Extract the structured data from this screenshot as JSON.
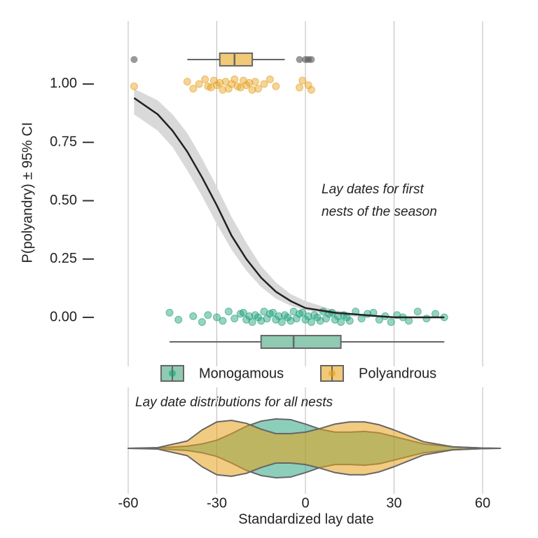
{
  "chart_data": [
    {
      "type": "logistic",
      "y_label": "P(polyandry) ± 95% CI",
      "annotation": [
        "Lay dates for first",
        "nests of the season"
      ],
      "xlim": [
        -60,
        66
      ],
      "xticks": [
        -60,
        -30,
        0,
        30,
        60
      ],
      "ylim": [
        -0.21,
        1.27
      ],
      "yticks": [
        {
          "value": 0,
          "label": "0.00"
        },
        {
          "value": 0.25,
          "label": "0.25"
        },
        {
          "value": 0.5,
          "label": "0.50"
        },
        {
          "value": 0.75,
          "label": "0.75"
        },
        {
          "value": 1,
          "label": "1.00"
        }
      ],
      "grid": true,
      "fit": {
        "color": "#222222",
        "band_color": "#d9d9d9",
        "x": [
          -58,
          -50,
          -45,
          -40,
          -35,
          -30,
          -25,
          -20,
          -15,
          -10,
          -5,
          0,
          10,
          20,
          30,
          47
        ],
        "y": [
          0.94,
          0.87,
          0.8,
          0.71,
          0.6,
          0.48,
          0.35,
          0.25,
          0.17,
          0.11,
          0.07,
          0.04,
          0.02,
          0.01,
          0,
          0
        ],
        "lower": [
          0.87,
          0.8,
          0.73,
          0.63,
          0.52,
          0.4,
          0.29,
          0.2,
          0.13,
          0.08,
          0.05,
          0.03,
          0.01,
          0,
          0,
          0
        ],
        "upper": [
          0.98,
          0.93,
          0.87,
          0.79,
          0.68,
          0.56,
          0.43,
          0.32,
          0.22,
          0.15,
          0.1,
          0.07,
          0.03,
          0.01,
          0.005,
          0.002
        ]
      },
      "legend": "bottom",
      "series": [
        {
          "name": "Monogamous",
          "color": "#1b9e77",
          "box_color": "#8fcab2",
          "x": [
            -46,
            -43,
            -38,
            -35,
            -33,
            -30,
            -28,
            -26,
            -24,
            -22,
            -21,
            -20,
            -19,
            -18,
            -17,
            -16,
            -15,
            -14,
            -13,
            -12,
            -11,
            -10,
            -9,
            -8,
            -7,
            -6,
            -5,
            -4,
            -3,
            -2,
            -1,
            0,
            1,
            2,
            3,
            4,
            5,
            6,
            7,
            8,
            9,
            10,
            11,
            12,
            13,
            14,
            15,
            17,
            19,
            21,
            23,
            25,
            27,
            29,
            31,
            33,
            35,
            38,
            41,
            44,
            47
          ],
          "y": [
            0.02,
            -0.01,
            0.005,
            -0.02,
            0.01,
            0,
            -0.015,
            0.025,
            -0.005,
            0.015,
            0.02,
            -0.01,
            0.005,
            -0.02,
            0.01,
            0,
            -0.015,
            0.025,
            -0.005,
            0.015,
            0.02,
            -0.01,
            0.005,
            -0.02,
            0.01,
            0,
            -0.015,
            0.025,
            -0.005,
            0.015,
            0.02,
            -0.01,
            0.005,
            -0.02,
            0.01,
            0,
            -0.015,
            0.025,
            -0.005,
            0.015,
            0.02,
            -0.01,
            0.005,
            -0.02,
            0.01,
            0,
            -0.015,
            0.025,
            -0.005,
            0.015,
            0.02,
            -0.01,
            0.005,
            -0.02,
            0.01,
            0,
            -0.015,
            0.025,
            -0.005,
            0.015,
            0
          ],
          "box": {
            "whisker_low": -46,
            "q1": -15,
            "median": -4,
            "q3": 12,
            "whisker_high": 47,
            "outliers": []
          }
        },
        {
          "name": "Polyandrous",
          "color": "#e6a01a",
          "box_color": "#f1c977",
          "x": [
            -58,
            -40,
            -38,
            -36,
            -34,
            -33,
            -32,
            -31,
            -30,
            -29,
            -28,
            -27,
            -26,
            -25,
            -24,
            -23,
            -22,
            -21,
            -20,
            -19,
            -18,
            -17,
            -16,
            -14,
            -12,
            -10,
            -2,
            -1,
            1,
            2
          ],
          "y": [
            0.99,
            1.01,
            0.98,
            1,
            1.02,
            0.99,
            0.985,
            1.015,
            0.995,
            1.005,
            0.975,
            1.01,
            0.98,
            1,
            1.02,
            0.99,
            0.985,
            1.015,
            0.995,
            1.005,
            0.975,
            1.01,
            0.98,
            1,
            1.02,
            0.99,
            0.985,
            1.015,
            0.995,
            0.975
          ],
          "box": {
            "whisker_low": -40,
            "q1": -29,
            "median": -24,
            "q3": -18,
            "whisker_high": -7,
            "outliers": [
              -58,
              -2,
              0,
              1,
              2
            ]
          }
        }
      ]
    },
    {
      "type": "violin",
      "annotation": "Lay date distributions for all nests",
      "x_label": "Standardized lay date",
      "xlim": [
        -60,
        66
      ],
      "xticks": [
        -60,
        -30,
        0,
        30,
        60
      ],
      "grid": true,
      "x": [
        -60,
        -50,
        -40,
        -35,
        -30,
        -25,
        -20,
        -15,
        -10,
        -5,
        0,
        5,
        10,
        15,
        20,
        25,
        30,
        40,
        50,
        60,
        66
      ],
      "series": [
        {
          "name": "Monogamous",
          "color": "#1b9e77",
          "values": [
            0,
            0.5,
            3,
            6,
            11,
            20,
            30,
            37,
            40,
            39,
            33,
            26,
            22,
            22,
            23,
            21,
            16,
            6,
            2,
            0.3,
            0
          ]
        },
        {
          "name": "Polyandrous",
          "color": "#e6a01a",
          "values": [
            0,
            1,
            10,
            25,
            36,
            38,
            34,
            26,
            20,
            20,
            22,
            27,
            33,
            36,
            36,
            32,
            25,
            9,
            2,
            0.3,
            0
          ]
        }
      ]
    }
  ]
}
